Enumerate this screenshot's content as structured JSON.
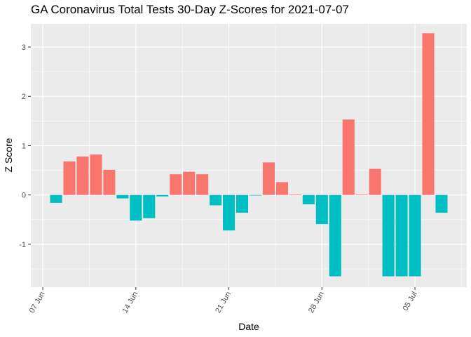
{
  "chart_data": {
    "type": "bar",
    "title": "GA Coronavirus Total Tests 30-Day Z-Scores for 2021-07-07",
    "xlabel": "Date",
    "ylabel": "Z Score",
    "colors": {
      "positive": "#F8766D",
      "negative": "#00BFC4",
      "panel": "#EBEBEB",
      "grid": "#FFFFFF"
    },
    "x_start_day": 7,
    "x_ticks": [
      {
        "label": "07 Jun",
        "day": 7
      },
      {
        "label": "14 Jun",
        "day": 14
      },
      {
        "label": "21 Jun",
        "day": 21
      },
      {
        "label": "28 Jun",
        "day": 28
      },
      {
        "label": "05 Jul",
        "day": 35
      }
    ],
    "y_ticks": [
      -1,
      0,
      1,
      2,
      3
    ],
    "xlim_days": [
      6.1,
      38.9
    ],
    "ylim": [
      -1.87,
      3.47
    ],
    "days": [
      8,
      9,
      10,
      11,
      12,
      13,
      14,
      15,
      16,
      17,
      18,
      19,
      20,
      21,
      22,
      23,
      24,
      25,
      26,
      27,
      28,
      29,
      30,
      31,
      32,
      33,
      34,
      35,
      36,
      37
    ],
    "values": [
      -0.16,
      0.68,
      0.78,
      0.82,
      0.51,
      -0.07,
      -0.52,
      -0.47,
      -0.03,
      0.42,
      0.47,
      0.42,
      -0.21,
      -0.72,
      -0.36,
      -0.01,
      0.66,
      0.26,
      0.01,
      -0.19,
      -0.59,
      -1.65,
      1.53,
      0.01,
      0.53,
      -1.65,
      -1.65,
      -1.65,
      3.28,
      -0.36
    ]
  }
}
